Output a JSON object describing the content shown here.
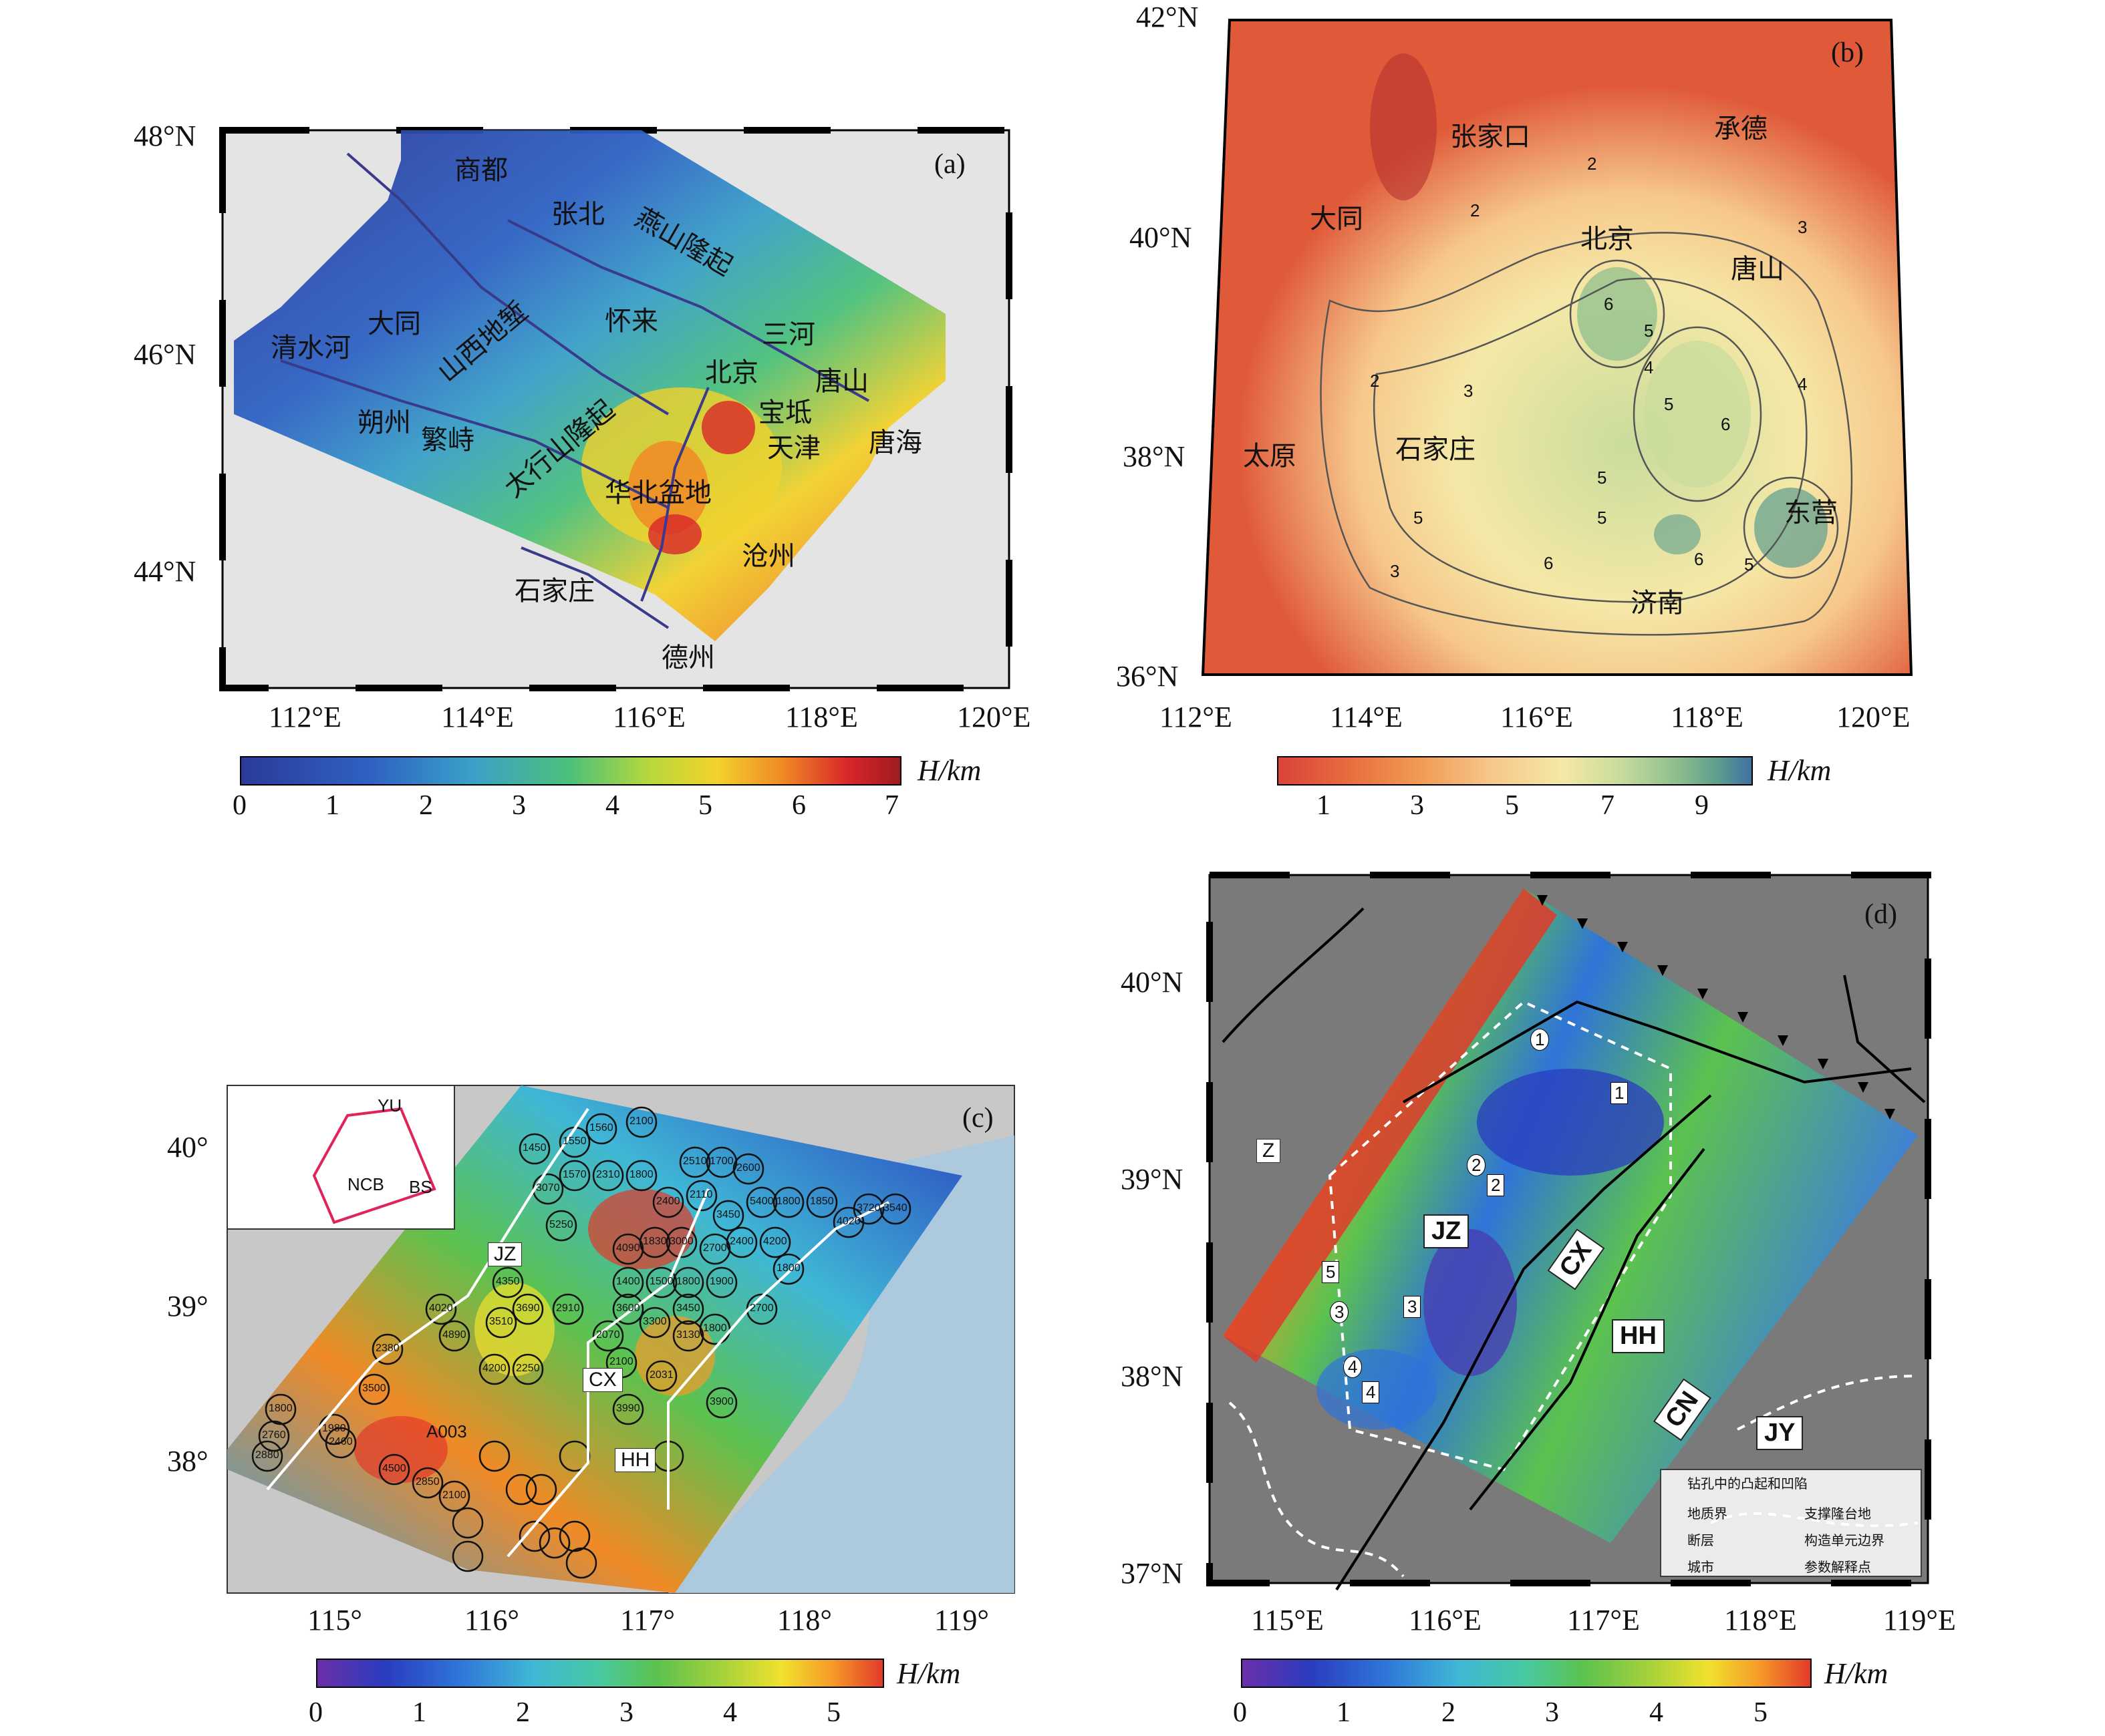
{
  "panels": {
    "a": {
      "label": "(a)",
      "lat_labels": [
        "48°N",
        "46°N",
        "44°N"
      ],
      "lon_labels": [
        "112°E",
        "114°E",
        "116°E",
        "118°E",
        "120°E"
      ],
      "cities": [
        "商都",
        "张北",
        "燕山隆起",
        "大同",
        "怀来",
        "三河",
        "清水河",
        "山西地堑",
        "北京",
        "唐山",
        "朔州",
        "繁峙",
        "宝坻",
        "天津",
        "唐海",
        "太行山隆起",
        "华北盆地",
        "沧州",
        "石家庄",
        "德州"
      ],
      "colorbar": {
        "unit": "H/km",
        "ticks": [
          "0",
          "1",
          "2",
          "3",
          "4",
          "5",
          "6",
          "7"
        ],
        "colors": [
          "#2b3a99",
          "#2f62c4",
          "#3aa0c9",
          "#4cc17a",
          "#b8d83b",
          "#f3d22c",
          "#f08a26",
          "#d8262a",
          "#9e1b1f"
        ]
      }
    },
    "b": {
      "label": "(b)",
      "lat_labels": [
        "42°N",
        "40°N",
        "38°N",
        "36°N"
      ],
      "lon_labels": [
        "112°E",
        "114°E",
        "116°E",
        "118°E",
        "120°E"
      ],
      "cities": [
        "张家口",
        "承德",
        "大同",
        "北京",
        "唐山",
        "太原",
        "石家庄",
        "东营",
        "济南"
      ],
      "contours": [
        "2",
        "2",
        "2",
        "3",
        "3",
        "4",
        "5",
        "5",
        "6",
        "6",
        "5",
        "4",
        "5",
        "6",
        "6",
        "5",
        "5",
        "3"
      ],
      "colorbar": {
        "unit": "H/km",
        "ticks": [
          "1",
          "3",
          "5",
          "7",
          "9"
        ],
        "colors": [
          "#d9423a",
          "#e86d3e",
          "#f19b55",
          "#f6c78a",
          "#f5e8a7",
          "#c9dc9c",
          "#8fbf8c",
          "#5c9c8e",
          "#3f6fa3"
        ]
      }
    },
    "c": {
      "label": "(c)",
      "lat_labels": [
        "40°",
        "39°",
        "38°"
      ],
      "lon_labels": [
        "115°",
        "116°",
        "117°",
        "118°",
        "119°"
      ],
      "codes": [
        "JZ",
        "CX",
        "HH"
      ],
      "inset_labels": [
        "YU",
        "NCB",
        "BS"
      ],
      "station": "A003",
      "station_values": [
        "1450",
        "1550",
        "1560",
        "2100",
        "3070",
        "1570",
        "2310",
        "1800",
        "2510",
        "1700",
        "2600",
        "2400",
        "2110",
        "3450",
        "5400",
        "5250",
        "4090",
        "1830",
        "3000",
        "2700",
        "2400",
        "1800",
        "1850",
        "4020",
        "3720",
        "3540",
        "4200",
        "1800",
        "4350",
        "3690",
        "2910",
        "3510",
        "4020",
        "4890",
        "4200",
        "2250",
        "1400",
        "1500",
        "1800",
        "1900",
        "2700",
        "3600",
        "3300",
        "3450",
        "1800",
        "3130",
        "2070",
        "2100",
        "2031",
        "3900",
        "3990",
        "2380",
        "3500",
        "1980",
        "2460",
        "1800",
        "2760",
        "2880",
        "4500",
        "2850",
        "2100"
      ],
      "colorbar": {
        "unit": "H/km",
        "ticks": [
          "0",
          "1",
          "2",
          "3",
          "4",
          "5"
        ],
        "colors": [
          "#6b2fa8",
          "#2a3cbf",
          "#2f74d8",
          "#3fb7d6",
          "#48c9a0",
          "#5cc24f",
          "#a9d23a",
          "#f1e12e",
          "#f59a28",
          "#e2392a"
        ]
      }
    },
    "d": {
      "label": "(d)",
      "lat_labels": [
        "40°N",
        "39°N",
        "38°N",
        "37°N"
      ],
      "lon_labels": [
        "115°E",
        "116°E",
        "117°E",
        "118°E",
        "119°E"
      ],
      "codes": [
        "Z",
        "JZ",
        "CX",
        "HH",
        "CN",
        "JY"
      ],
      "numbers": [
        "1",
        "1",
        "2",
        "2",
        "3",
        "3",
        "4",
        "4",
        "5"
      ],
      "legend": [
        "钻孔中的凸起和凹陷",
        "地质界",
        "支撑隆台地",
        "断层",
        "构造单元边界",
        "城市",
        "参数解释点"
      ],
      "colorbar": {
        "unit": "H/km",
        "ticks": [
          "0",
          "1",
          "2",
          "3",
          "4",
          "5"
        ],
        "colors": [
          "#6b2fa8",
          "#2a3cbf",
          "#2f74d8",
          "#3fb7d6",
          "#48c9a0",
          "#5cc24f",
          "#a9d23a",
          "#f1e12e",
          "#f59a28",
          "#e2392a"
        ]
      }
    }
  }
}
